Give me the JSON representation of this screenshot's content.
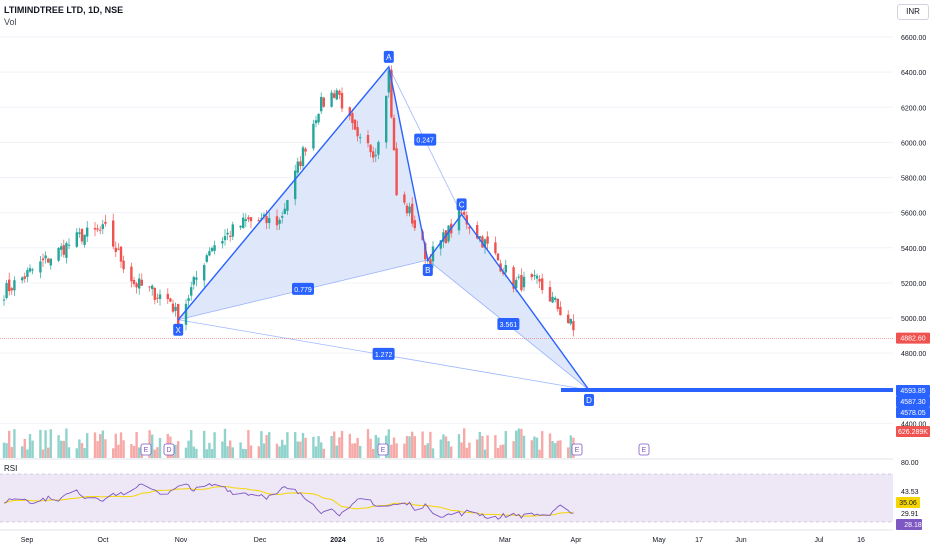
{
  "header": {
    "symbol": "LTIMINDTREE LTD, 1D, NSE",
    "volume_label": "Vol"
  },
  "currency": "INR",
  "rsi_label": "RSI",
  "colors": {
    "up": "#26a69a",
    "down": "#ef5350",
    "pattern": "#2962ff",
    "pattern_fill": "#dbe4fb",
    "rsi": "#7e57c2",
    "rsi_ma": "#f5d600",
    "rsi_band": "#ede7f6",
    "volume_up": "#8fd3cc",
    "volume_down": "#f7a9a7"
  },
  "chart_data": {
    "type": "candlestick",
    "price_axis": {
      "min": 4300,
      "max": 6700,
      "ticks": [
        "6600.00",
        "6400.00",
        "6200.00",
        "6000.00",
        "5800.00",
        "5600.00",
        "5400.00",
        "5200.00",
        "5000.00",
        "4800.00",
        "4400.00"
      ]
    },
    "time_axis": [
      "Sep",
      "Oct",
      "Nov",
      "Dec",
      "2024",
      "16",
      "Feb",
      "Mar",
      "Apr",
      "May",
      "17",
      "Jun",
      "Jul",
      "16"
    ],
    "last_price": "4882.60",
    "volume_value": "626.289K",
    "price_labels": [
      "4593.85",
      "4587.30",
      "4578.05"
    ],
    "harmonic_pattern": {
      "points": [
        {
          "label": "X",
          "date": "2023-10-27",
          "price": 4990
        },
        {
          "label": "A",
          "date": "2024-01-16",
          "price": 6430
        },
        {
          "label": "B",
          "date": "2024-01-31",
          "price": 5330
        },
        {
          "label": "C",
          "date": "2024-02-13",
          "price": 5590
        },
        {
          "label": "D",
          "date": "2024-04-02",
          "price": 4590
        }
      ],
      "ratios": [
        "0.779",
        "0.247",
        "3.561",
        "1.272"
      ]
    },
    "events": [
      "E",
      "D",
      "E",
      "E",
      "E"
    ],
    "rsi": {
      "ticks": [
        "80.00",
        "43.53",
        "35.06",
        "29.91",
        "28.18"
      ],
      "current": "28.18",
      "ma": "35.06"
    },
    "candles_note": "approximate daily OHLC read from chart"
  }
}
